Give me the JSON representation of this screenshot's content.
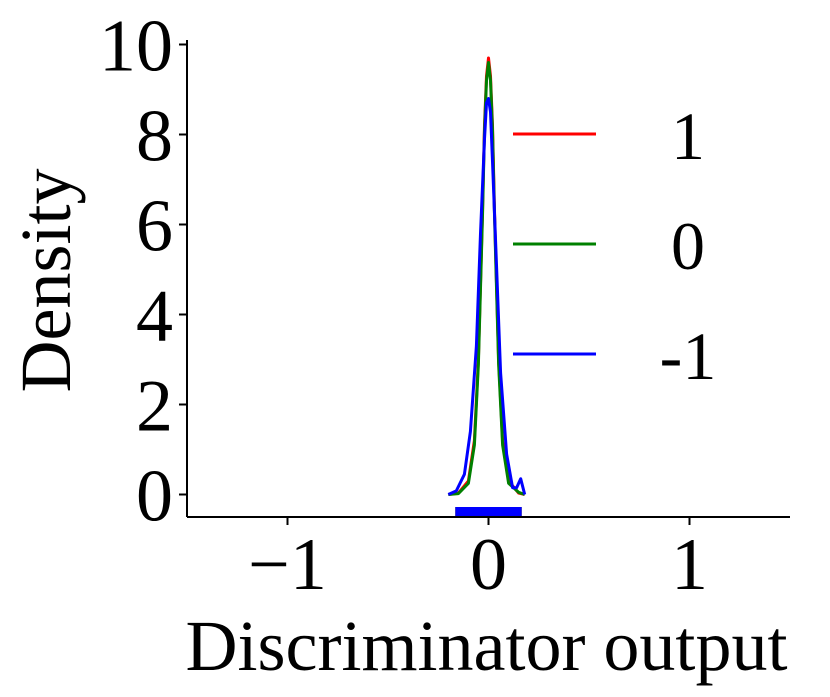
{
  "chart_data": {
    "type": "line",
    "title": "",
    "xlabel": "Discriminator output",
    "ylabel": "Density",
    "xlim": [
      -1.5,
      1.5
    ],
    "ylim": [
      -0.5,
      10.1
    ],
    "xticks": [
      -1,
      0,
      1
    ],
    "xtick_labels": [
      "−1",
      "0",
      "1"
    ],
    "yticks": [
      0,
      2,
      4,
      6,
      8,
      10
    ],
    "ytick_labels": [
      "0",
      "2",
      "4",
      "6",
      "8",
      "10"
    ],
    "grid": false,
    "legend_position": "right",
    "rug": true,
    "series": [
      {
        "name": "1",
        "color": "#ff0000",
        "x": [
          -0.2,
          -0.15,
          -0.1,
          -0.07,
          -0.05,
          -0.03,
          -0.02,
          -0.01,
          0.0,
          0.01,
          0.02,
          0.03,
          0.05,
          0.07,
          0.1,
          0.15,
          0.18
        ],
        "y": [
          0.0,
          0.03,
          0.3,
          1.2,
          3.0,
          6.3,
          8.2,
          9.3,
          9.7,
          9.3,
          8.2,
          6.3,
          3.0,
          1.2,
          0.3,
          0.03,
          0.0
        ]
      },
      {
        "name": "0",
        "color": "#008000",
        "x": [
          -0.2,
          -0.15,
          -0.1,
          -0.07,
          -0.05,
          -0.03,
          -0.02,
          -0.01,
          0.0,
          0.01,
          0.02,
          0.03,
          0.05,
          0.07,
          0.1,
          0.15,
          0.18
        ],
        "y": [
          0.0,
          0.02,
          0.25,
          1.1,
          2.9,
          6.2,
          8.1,
          9.2,
          9.6,
          9.2,
          8.1,
          6.2,
          2.9,
          1.1,
          0.25,
          0.05,
          0.0
        ]
      },
      {
        "name": "-1",
        "color": "#0000ff",
        "x": [
          -0.2,
          -0.16,
          -0.12,
          -0.09,
          -0.06,
          -0.04,
          -0.02,
          -0.01,
          0.0,
          0.01,
          0.02,
          0.04,
          0.06,
          0.09,
          0.12,
          0.14,
          0.16,
          0.18
        ],
        "y": [
          0.0,
          0.08,
          0.45,
          1.4,
          3.3,
          5.8,
          7.9,
          8.7,
          8.8,
          8.5,
          7.4,
          5.1,
          2.7,
          0.9,
          0.15,
          0.15,
          0.35,
          0.0
        ]
      }
    ]
  }
}
